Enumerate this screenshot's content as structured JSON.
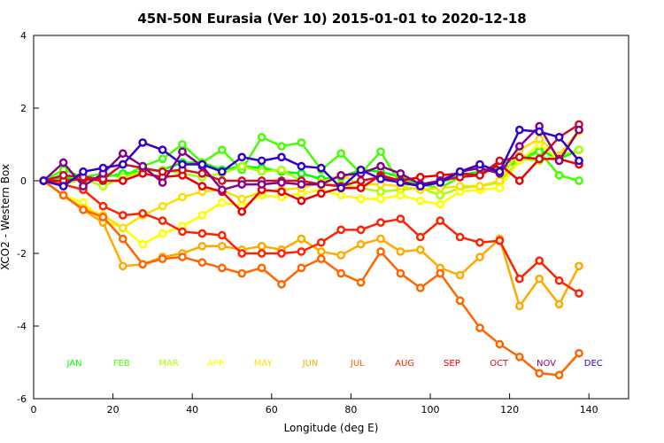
{
  "chart_data": {
    "type": "line",
    "title": "45N-50N Eurasia (Ver 10)   2015-01-01 to 2020-12-18",
    "xlabel": "Longitude (deg E)",
    "ylabel": "XCO2 - Western Box",
    "xlim": [
      0,
      150
    ],
    "ylim": [
      -6,
      4
    ],
    "x_ticks": [
      0,
      20,
      40,
      60,
      80,
      100,
      120,
      140
    ],
    "y_ticks": [
      -6,
      -4,
      -2,
      0,
      2,
      4
    ],
    "x_tick_labels": [
      "0",
      "20",
      "40",
      "60",
      "80",
      "100",
      "120",
      "140"
    ],
    "y_tick_labels": [
      "-6",
      "-4",
      "-2",
      "0",
      "2",
      "4"
    ],
    "x": [
      2.5,
      7.5,
      12.5,
      17.5,
      22.5,
      27.5,
      32.5,
      37.5,
      42.5,
      47.5,
      52.5,
      57.5,
      62.5,
      67.5,
      72.5,
      77.5,
      82.5,
      87.5,
      92.5,
      97.5,
      102.5,
      107.5,
      112.5,
      117.5,
      122.5,
      127.5,
      132.5,
      137.5
    ],
    "series": [
      {
        "name": "JAN",
        "color": "#00ff00",
        "values": [
          0,
          0.1,
          0,
          0.1,
          0.2,
          0.25,
          0.3,
          0.5,
          0.5,
          0.3,
          0.4,
          0.35,
          0.25,
          0.2,
          0.05,
          0.1,
          0.3,
          0.25,
          0.1,
          -0.1,
          -0.05,
          0.15,
          0.25,
          0.3,
          0.55,
          0.85,
          0.6,
          0.85
        ]
      },
      {
        "name": "FEB",
        "color": "#44ff00",
        "values": [
          0,
          0.3,
          0.1,
          0.2,
          0.1,
          0.4,
          0.6,
          1.0,
          0.5,
          0.85,
          0.3,
          1.2,
          0.95,
          1.05,
          0.3,
          0.75,
          0.2,
          0.8,
          -0.1,
          -0.1,
          -0.2,
          0.1,
          0.2,
          0.5,
          0.55,
          0.8,
          0.15,
          0.0
        ]
      },
      {
        "name": "MAR",
        "color": "#aaff00",
        "values": [
          0,
          -0.1,
          0.05,
          -0.15,
          0.1,
          0.25,
          0.3,
          0.2,
          0.1,
          0.2,
          0.4,
          0.25,
          0.3,
          0.0,
          -0.1,
          -0.1,
          -0.2,
          -0.3,
          -0.25,
          -0.2,
          -0.4,
          -0.2,
          -0.15,
          -0.05,
          0.6,
          0.55,
          0.7,
          0.85
        ]
      },
      {
        "name": "APR",
        "color": "#ffff00",
        "values": [
          0,
          -0.4,
          -0.6,
          -1.1,
          -1.3,
          -1.75,
          -1.45,
          -1.25,
          -0.95,
          -0.6,
          -0.7,
          -0.4,
          -0.45,
          -0.35,
          -0.25,
          -0.4,
          -0.5,
          -0.5,
          -0.4,
          -0.55,
          -0.65,
          -0.3,
          -0.25,
          -0.2,
          0.55,
          1.0,
          0.6,
          1.35
        ]
      },
      {
        "name": "MAY",
        "color": "#ffdd00",
        "values": [
          0,
          -0.4,
          -0.75,
          -0.95,
          -1.3,
          -0.95,
          -0.7,
          -0.45,
          -0.3,
          -0.25,
          -0.5,
          -0.3,
          -0.25,
          -0.2,
          -0.05,
          0.15,
          -0.1,
          -0.1,
          -0.15,
          -0.25,
          -0.2,
          -0.15,
          -0.15,
          0.0,
          0.85,
          1.15,
          0.7,
          1.4
        ]
      },
      {
        "name": "JUN",
        "color": "#ffaa00",
        "values": [
          0,
          -0.4,
          -0.8,
          -1.15,
          -2.35,
          -2.3,
          -2.1,
          -2.0,
          -1.8,
          -1.8,
          -1.9,
          -1.8,
          -1.9,
          -1.6,
          -1.95,
          -2.05,
          -1.75,
          -1.6,
          -1.95,
          -1.9,
          -2.4,
          -2.6,
          -2.1,
          -1.6,
          -3.45,
          -2.7,
          -3.4,
          -2.35
        ]
      },
      {
        "name": "JUL",
        "color": "#ff6600",
        "values": [
          0,
          -0.4,
          -0.8,
          -1.0,
          -1.6,
          -2.3,
          -2.15,
          -2.1,
          -2.25,
          -2.4,
          -2.55,
          -2.4,
          -2.85,
          -2.4,
          -2.15,
          -2.55,
          -2.8,
          -1.95,
          -2.55,
          -2.95,
          -2.55,
          -3.3,
          -4.05,
          -4.5,
          -4.85,
          -5.3,
          -5.35,
          -4.75
        ]
      },
      {
        "name": "AUG",
        "color": "#ff2200",
        "values": [
          0,
          -0.1,
          -0.25,
          -0.7,
          -0.95,
          -0.9,
          -1.1,
          -1.4,
          -1.45,
          -1.5,
          -2.0,
          -2.0,
          -2.0,
          -1.95,
          -1.7,
          -1.35,
          -1.35,
          -1.15,
          -1.05,
          -1.55,
          -1.1,
          -1.55,
          -1.7,
          -1.65,
          -2.7,
          -2.2,
          -2.75,
          -3.1
        ]
      },
      {
        "name": "SEP",
        "color": "#ee0000",
        "values": [
          0,
          0.0,
          0.05,
          0.0,
          0.0,
          0.2,
          0.1,
          0.15,
          -0.15,
          -0.3,
          -0.85,
          -0.25,
          -0.3,
          -0.55,
          -0.35,
          -0.2,
          -0.2,
          0.15,
          0.0,
          0.1,
          0.15,
          0.2,
          0.15,
          0.45,
          0.0,
          0.6,
          0.6,
          0.45
        ]
      },
      {
        "name": "OCT",
        "color": "#cc1122",
        "values": [
          0,
          0.15,
          0.1,
          0.05,
          0.45,
          0.35,
          0.25,
          0.3,
          0.2,
          0.0,
          0.0,
          0.0,
          0.0,
          0.0,
          -0.1,
          -0.15,
          0.0,
          0.1,
          0.0,
          -0.15,
          0.0,
          0.1,
          0.15,
          0.55,
          0.65,
          0.6,
          1.2,
          1.55
        ]
      },
      {
        "name": "NOV",
        "color": "#880088",
        "values": [
          0,
          0.5,
          -0.15,
          0.2,
          0.75,
          0.4,
          -0.05,
          0.8,
          0.4,
          -0.25,
          -0.1,
          -0.1,
          -0.05,
          -0.1,
          -0.1,
          0.15,
          0.2,
          0.4,
          0.2,
          -0.1,
          0.0,
          0.25,
          0.35,
          0.2,
          0.95,
          1.5,
          0.55,
          1.4
        ]
      },
      {
        "name": "DEC",
        "color": "#3300cc",
        "values": [
          0,
          -0.15,
          0.25,
          0.35,
          0.45,
          1.05,
          0.85,
          0.45,
          0.45,
          0.25,
          0.65,
          0.55,
          0.65,
          0.4,
          0.35,
          -0.2,
          0.3,
          0.05,
          -0.05,
          -0.15,
          -0.05,
          0.25,
          0.45,
          0.25,
          1.4,
          1.35,
          1.2,
          0.55
        ]
      }
    ]
  }
}
